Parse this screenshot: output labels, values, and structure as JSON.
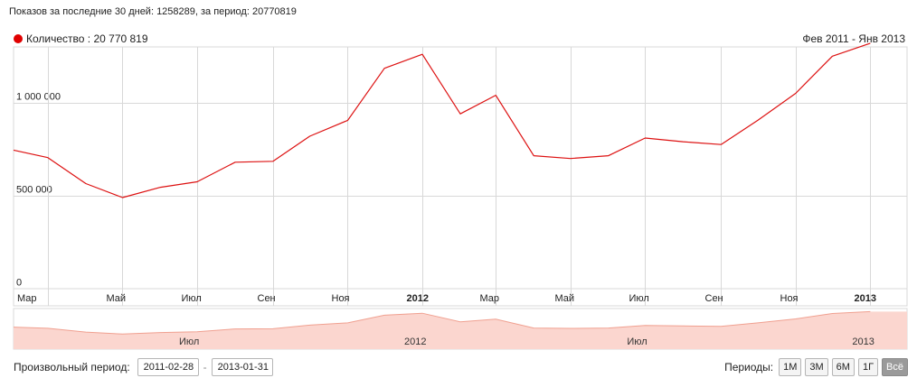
{
  "header": {
    "summary": "Показов за последние 30 дней: 1258289, за период: 20770819",
    "range_label": "Фев 2011 - Янв 2013"
  },
  "colors": {
    "series": "#dd1111",
    "navigator_fill": "#fbd6cf",
    "navigator_line": "#f0a090",
    "grid": "#d8d8d8"
  },
  "chart_data": {
    "type": "line",
    "ylim": [
      0,
      1300000
    ],
    "y_ticks": [
      {
        "value": 0,
        "label": "0"
      },
      {
        "value": 500000,
        "label": "500 000"
      },
      {
        "value": 1000000,
        "label": "1 000 000"
      }
    ],
    "x_range": [
      "2011-02-01",
      "2013-01-31"
    ],
    "x_ticks": [
      {
        "date": "2011-03-01",
        "label": "Мар",
        "bold": false
      },
      {
        "date": "2011-05-01",
        "label": "Май",
        "bold": false
      },
      {
        "date": "2011-07-01",
        "label": "Июл",
        "bold": false
      },
      {
        "date": "2011-09-01",
        "label": "Сен",
        "bold": false
      },
      {
        "date": "2011-11-01",
        "label": "Ноя",
        "bold": false
      },
      {
        "date": "2012-01-01",
        "label": "2012",
        "bold": true
      },
      {
        "date": "2012-03-01",
        "label": "Мар",
        "bold": false
      },
      {
        "date": "2012-05-01",
        "label": "Май",
        "bold": false
      },
      {
        "date": "2012-07-01",
        "label": "Июл",
        "bold": false
      },
      {
        "date": "2012-09-01",
        "label": "Сен",
        "bold": false
      },
      {
        "date": "2012-11-01",
        "label": "Ноя",
        "bold": false
      },
      {
        "date": "2013-01-01",
        "label": "2013",
        "bold": true
      }
    ],
    "series": [
      {
        "name": "Количество",
        "total_label": "20 770 819",
        "points": [
          {
            "date": "2011-02-01",
            "value": 745000
          },
          {
            "date": "2011-03-01",
            "value": 705000
          },
          {
            "date": "2011-04-01",
            "value": 565000
          },
          {
            "date": "2011-05-01",
            "value": 490000
          },
          {
            "date": "2011-06-01",
            "value": 545000
          },
          {
            "date": "2011-07-01",
            "value": 575000
          },
          {
            "date": "2011-08-01",
            "value": 680000
          },
          {
            "date": "2011-09-01",
            "value": 685000
          },
          {
            "date": "2011-10-01",
            "value": 820000
          },
          {
            "date": "2011-11-01",
            "value": 905000
          },
          {
            "date": "2011-12-01",
            "value": 1185000
          },
          {
            "date": "2012-01-01",
            "value": 1260000
          },
          {
            "date": "2012-02-01",
            "value": 940000
          },
          {
            "date": "2012-03-01",
            "value": 1040000
          },
          {
            "date": "2012-04-01",
            "value": 715000
          },
          {
            "date": "2012-05-01",
            "value": 700000
          },
          {
            "date": "2012-06-01",
            "value": 715000
          },
          {
            "date": "2012-07-01",
            "value": 810000
          },
          {
            "date": "2012-08-01",
            "value": 790000
          },
          {
            "date": "2012-09-01",
            "value": 775000
          },
          {
            "date": "2012-10-01",
            "value": 905000
          },
          {
            "date": "2012-11-01",
            "value": 1050000
          },
          {
            "date": "2012-12-01",
            "value": 1250000
          },
          {
            "date": "2013-01-01",
            "value": 1320000
          }
        ]
      }
    ],
    "navigator": {
      "ticks": [
        {
          "date": "2011-07-01",
          "label": "Июл"
        },
        {
          "date": "2012-01-01",
          "label": "2012"
        },
        {
          "date": "2012-07-01",
          "label": "Июл"
        },
        {
          "date": "2013-01-01",
          "label": "2013"
        }
      ]
    },
    "grid": true,
    "legend": "top-left"
  },
  "footer": {
    "custom_period_label": "Произвольный период:",
    "from_date": "2011-02-28",
    "to_date": "2013-01-31",
    "periods_label": "Периоды:",
    "period_buttons": [
      "1М",
      "3М",
      "6М",
      "1Г",
      "Всё"
    ],
    "active_period": "Всё"
  }
}
